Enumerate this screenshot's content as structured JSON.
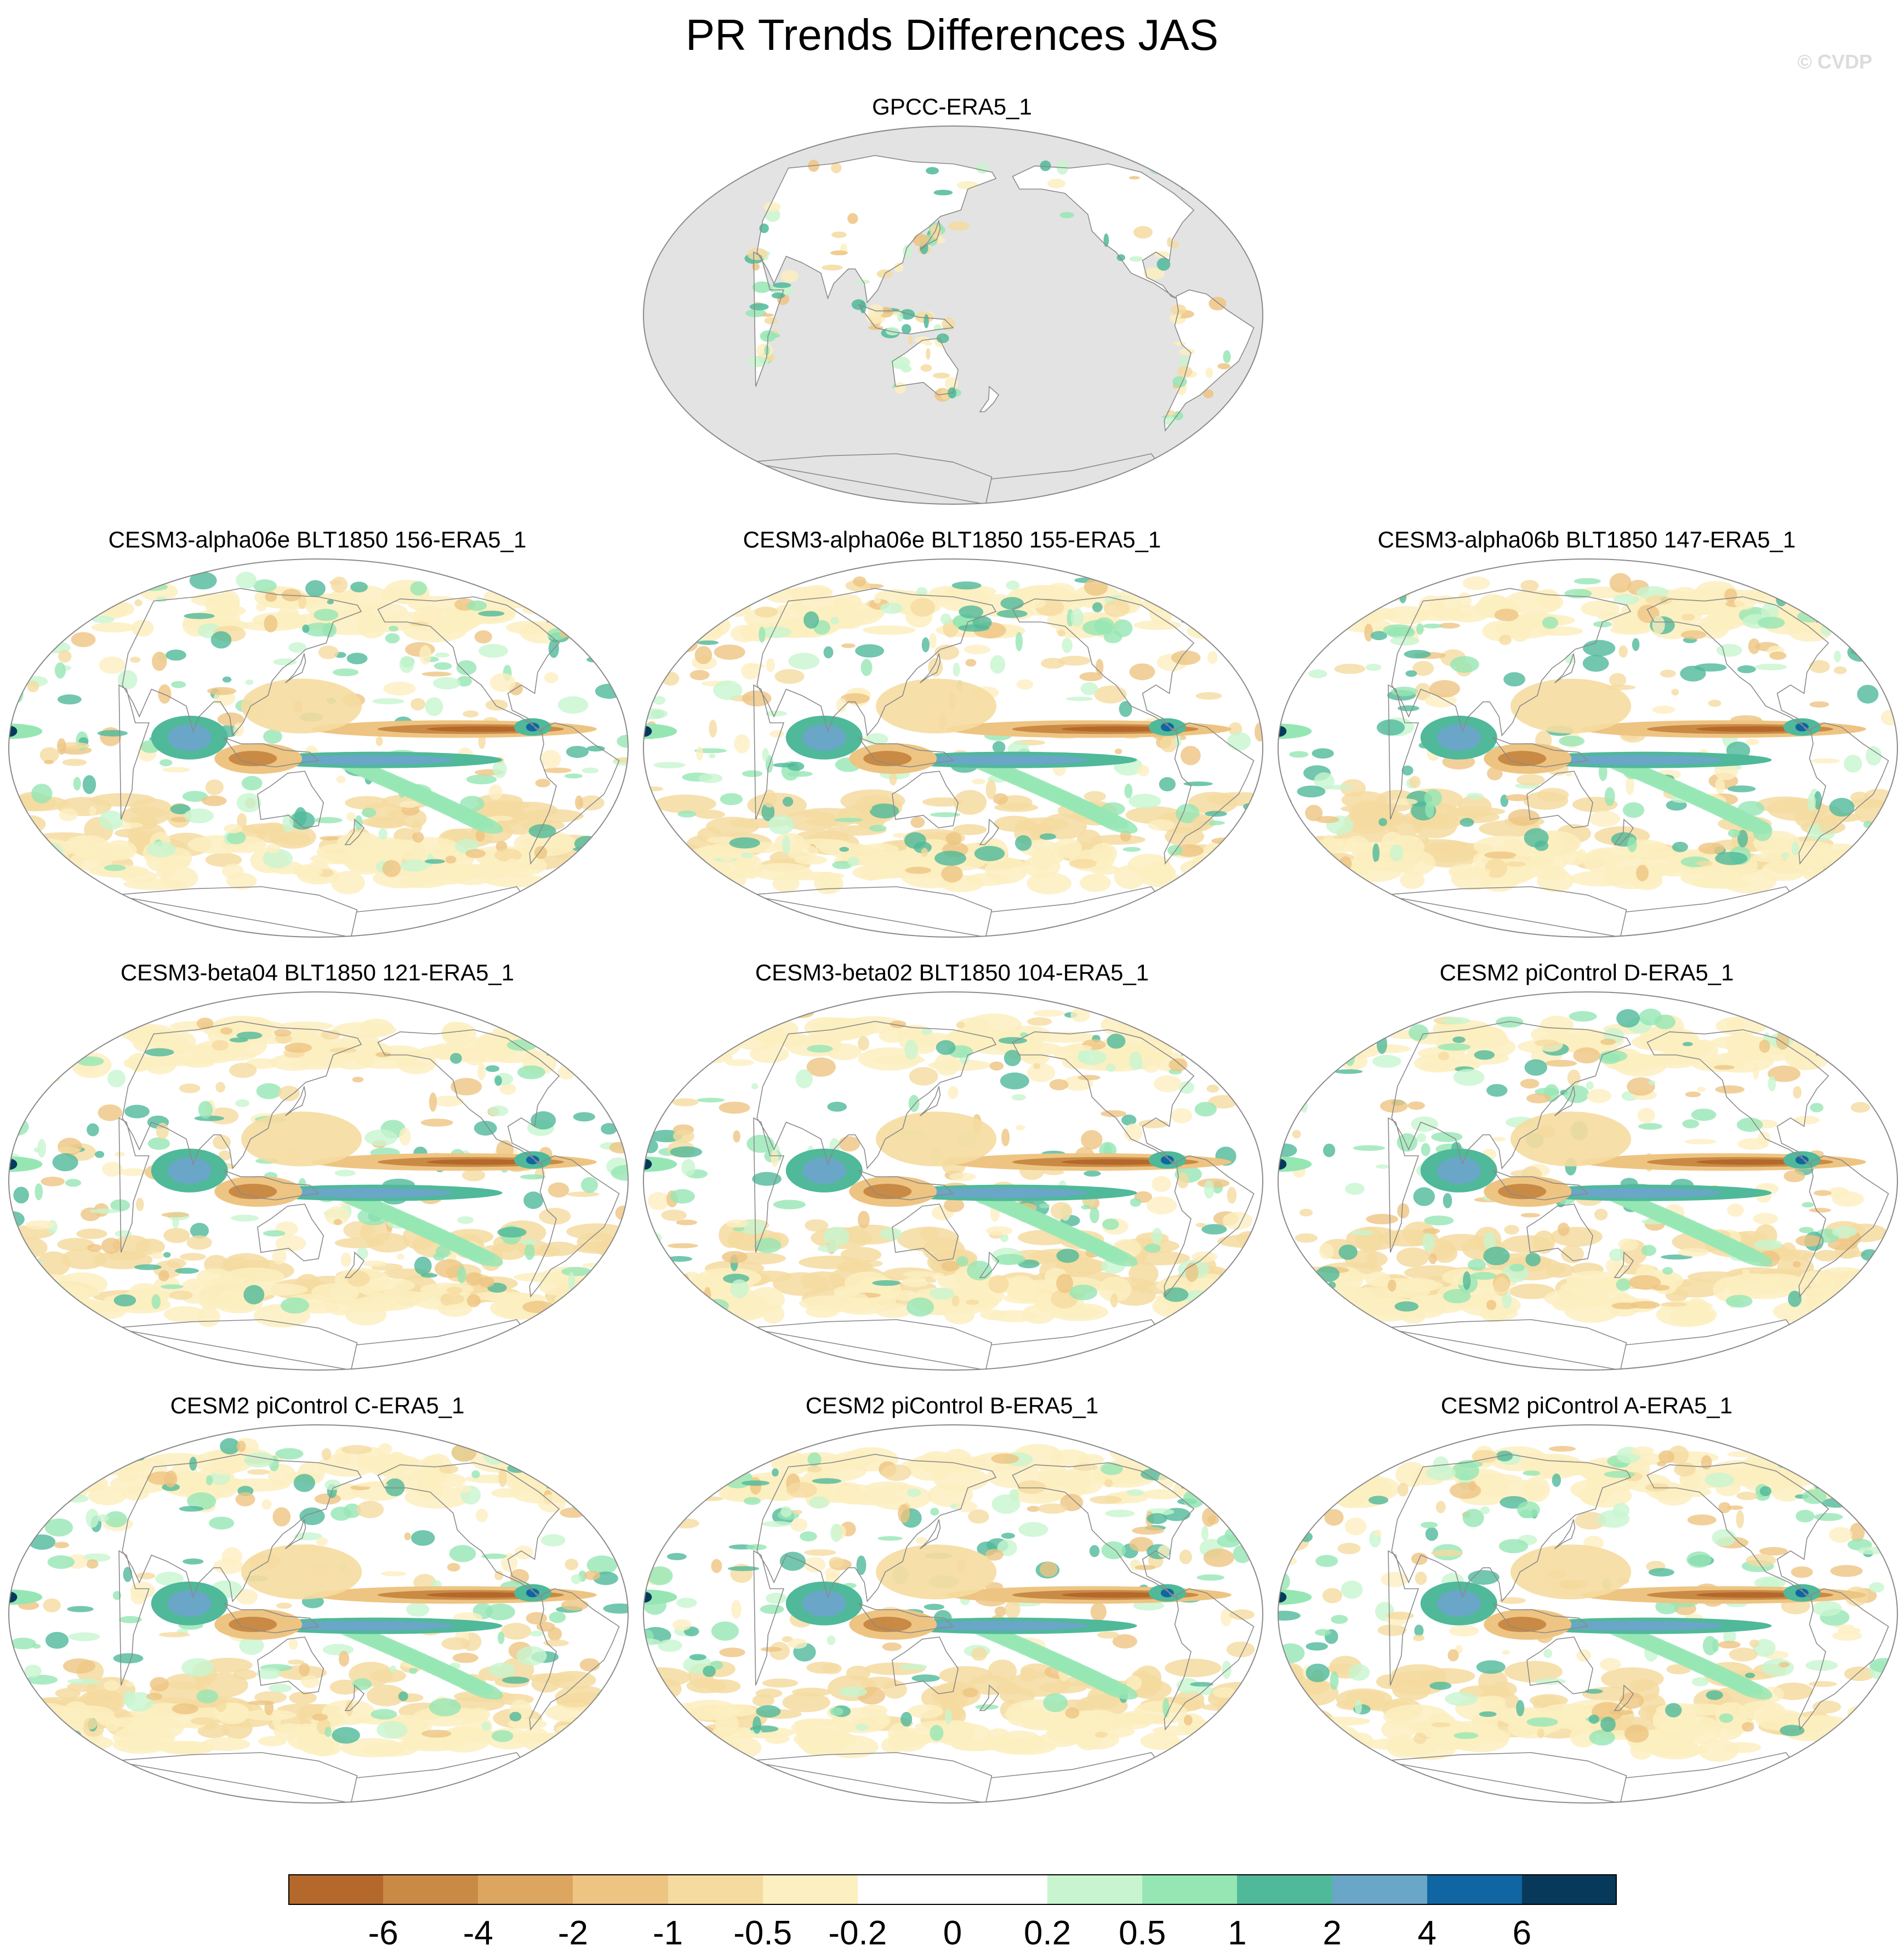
{
  "title": "PR Trends Differences JAS",
  "credit": "© CVDP",
  "panels": [
    {
      "title": "GPCC-ERA5_1",
      "obs": true
    },
    {
      "title": "CESM3-alpha06e BLT1850 156-ERA5_1",
      "obs": false
    },
    {
      "title": "CESM3-alpha06e BLT1850 155-ERA5_1",
      "obs": false
    },
    {
      "title": "CESM3-alpha06b BLT1850 147-ERA5_1",
      "obs": false
    },
    {
      "title": "CESM3-beta04 BLT1850 121-ERA5_1",
      "obs": false
    },
    {
      "title": "CESM3-beta02 BLT1850 104-ERA5_1",
      "obs": false
    },
    {
      "title": "CESM2 piControl D-ERA5_1",
      "obs": false
    },
    {
      "title": "CESM2 piControl C-ERA5_1",
      "obs": false
    },
    {
      "title": "CESM2 piControl B-ERA5_1",
      "obs": false
    },
    {
      "title": "CESM2 piControl A-ERA5_1",
      "obs": false
    }
  ],
  "colorbar": {
    "labels": [
      "-6",
      "-4",
      "-2",
      "-1",
      "-0.5",
      "-0.2",
      "0",
      "0.2",
      "0.5",
      "1",
      "2",
      "4",
      "6"
    ],
    "colors": [
      "#b4682b",
      "#c98a45",
      "#dca660",
      "#eec482",
      "#f5dba0",
      "#fcefc0",
      "#ffffff",
      "#ffffff",
      "#c8f5cf",
      "#96e6b4",
      "#4fb99a",
      "#6aa6c7",
      "#1065a3",
      "#073a5a"
    ]
  },
  "map_style": {
    "obs_missing": "#e3e3e3",
    "coast": "#8a8a8a",
    "frame": "#8a8a8a"
  }
}
